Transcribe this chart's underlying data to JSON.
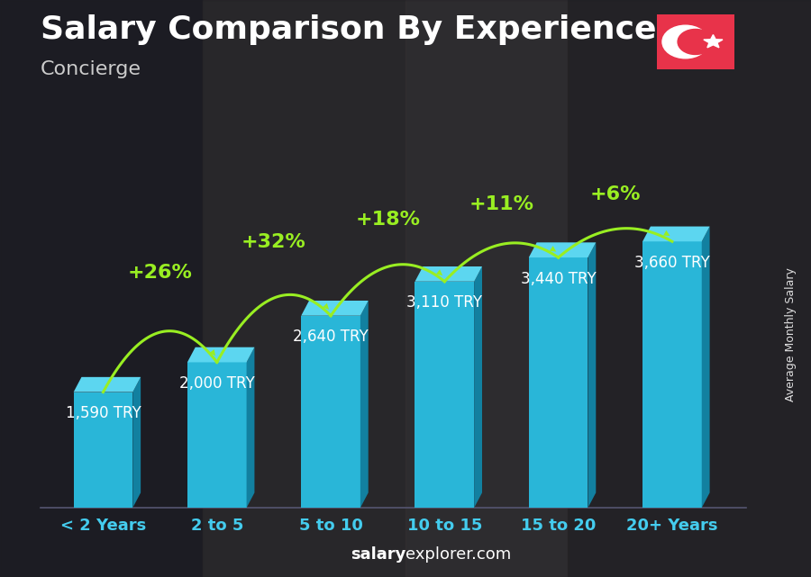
{
  "title": "Salary Comparison By Experience",
  "subtitle": "Concierge",
  "categories": [
    "< 2 Years",
    "2 to 5",
    "5 to 10",
    "10 to 15",
    "15 to 20",
    "20+ Years"
  ],
  "values": [
    1590,
    2000,
    2640,
    3110,
    3440,
    3660
  ],
  "pct_changes": [
    "+26%",
    "+32%",
    "+18%",
    "+11%",
    "+6%"
  ],
  "bar_color_front": "#29B6D8",
  "bar_color_top": "#5CD6F0",
  "bar_color_side": "#1280A0",
  "bg_color": "#2d2d35",
  "title_color": "#ffffff",
  "subtitle_color": "#cccccc",
  "value_label_color": "#ffffff",
  "pct_color": "#99ee22",
  "xlabel_color": "#44ccee",
  "ylabel_text": "Average Monthly Salary",
  "footer_salary": "salary",
  "footer_rest": "explorer.com",
  "ylim": [
    0,
    4600
  ],
  "flag_color": "#e8334a",
  "title_fontsize": 26,
  "subtitle_fontsize": 16,
  "value_fontsize": 12,
  "pct_fontsize": 16,
  "xlabel_fontsize": 13,
  "footer_fontsize": 13,
  "ylabel_fontsize": 9
}
